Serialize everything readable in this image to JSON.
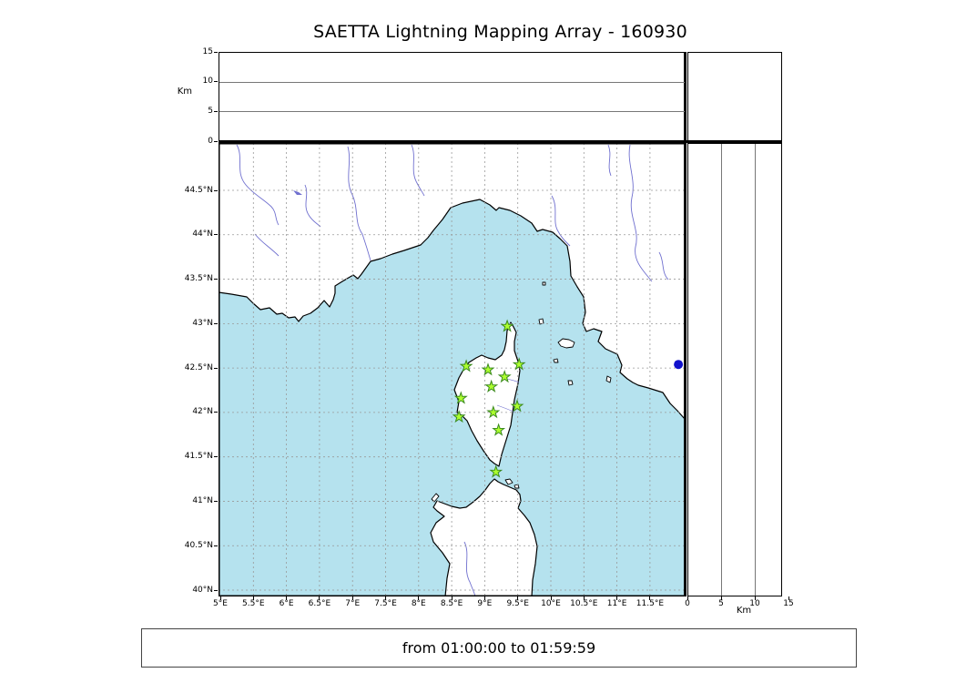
{
  "title": "SAETTA Lightning Mapping Array - 160930",
  "footer_text": "from 01:00:00 to 01:59:59",
  "axes": {
    "altitude_label": "Km",
    "altitude_tick_labels": [
      "0",
      "5",
      "10",
      "15"
    ],
    "lat_tick_labels": [
      "44.5°N",
      "44°N",
      "43.5°N",
      "43°N",
      "42.5°N",
      "42°N",
      "41.5°N",
      "41°N",
      "40.5°N",
      "40°N"
    ],
    "lon_tick_labels": [
      "5°E",
      "5.5°E",
      "6°E",
      "6.5°E",
      "7°E",
      "7.5°E",
      "8°E",
      "8.5°E",
      "9°E",
      "9.5°E",
      "10°E",
      "10.5°E",
      "11°E",
      "11.5°E"
    ]
  },
  "chart_data": {
    "type": "scatter",
    "title": "SAETTA Lightning Mapping Array - 160930",
    "time_range": "from 01:00:00 to 01:59:59",
    "description": "Lightning mapping array station map of Corsica with empty altitude-vs-longitude (top) and altitude-vs-latitude (right) panels",
    "map_panel": {
      "lon_range": [
        5.0,
        12.05
      ],
      "lat_range": [
        39.93,
        45.03
      ],
      "lon_ticks": [
        5,
        5.5,
        6,
        6.5,
        7,
        7.5,
        8,
        8.5,
        9,
        9.5,
        10,
        10.5,
        11,
        11.5
      ],
      "lat_ticks": [
        44.5,
        44,
        43.5,
        43,
        42.5,
        42,
        41.5,
        41,
        40.5,
        40
      ],
      "grid": "dashed"
    },
    "altitude_panel": {
      "label": "Km",
      "range": [
        0,
        15
      ],
      "ticks": [
        0,
        5,
        10,
        15
      ],
      "gridlines": [
        5,
        10
      ],
      "data_points": []
    },
    "stations": [
      {
        "lat": 42.97,
        "lon": 9.34
      },
      {
        "lat": 42.52,
        "lon": 8.72
      },
      {
        "lat": 42.48,
        "lon": 9.05
      },
      {
        "lat": 42.54,
        "lon": 9.52
      },
      {
        "lat": 42.4,
        "lon": 9.3
      },
      {
        "lat": 42.29,
        "lon": 9.1
      },
      {
        "lat": 42.16,
        "lon": 8.64
      },
      {
        "lat": 42.07,
        "lon": 9.49
      },
      {
        "lat": 42.0,
        "lon": 9.13
      },
      {
        "lat": 41.95,
        "lon": 8.61
      },
      {
        "lat": 41.8,
        "lon": 9.21
      },
      {
        "lat": 41.33,
        "lon": 9.17
      }
    ],
    "lakes": [
      {
        "lat": 42.54,
        "lon": 11.93,
        "radius_px": 5
      }
    ],
    "colors": {
      "sea": "#b5e2ee",
      "land": "#ffffff",
      "coastline": "#000000",
      "river": "#7070cf",
      "grid": "#999999",
      "station_fill": "#adff2f",
      "station_edge": "#3a8a1d",
      "lake": "#1111cc"
    }
  }
}
